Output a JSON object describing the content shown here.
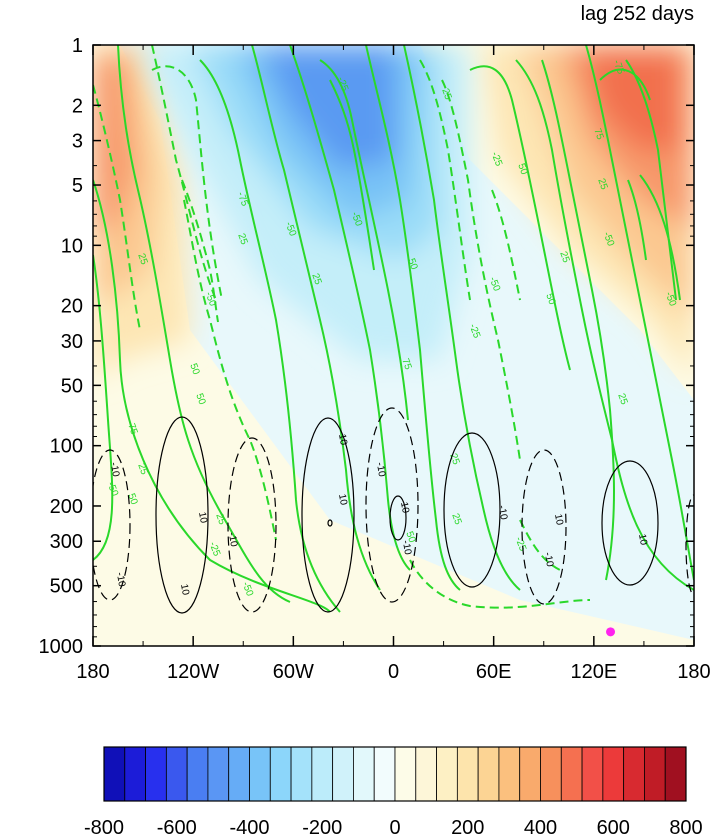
{
  "chart_data": {
    "type": "contour",
    "title": "lag 252 days",
    "xlabel": "",
    "ylabel": "",
    "x_ticks": [
      "180",
      "120W",
      "60W",
      "0",
      "60E",
      "120E",
      "180"
    ],
    "x_range": [
      -180,
      180
    ],
    "y_ticks": [
      "1",
      "2",
      "3",
      "5",
      "10",
      "20",
      "30",
      "50",
      "100",
      "200",
      "300",
      "500",
      "1000"
    ],
    "y_tick_values": [
      1,
      2,
      3,
      5,
      10,
      20,
      30,
      50,
      100,
      200,
      300,
      500,
      1000
    ],
    "y_range": [
      1,
      1000
    ],
    "y_scale": "log-reversed",
    "grid": false,
    "colorbar": {
      "orientation": "horizontal",
      "labels": [
        "-800",
        "-600",
        "-400",
        "-200",
        "0",
        "200",
        "400",
        "600",
        "800"
      ],
      "range": [
        -800,
        800
      ],
      "interval": 50,
      "colors": [
        "#1010b8",
        "#1c1cd8",
        "#2830ee",
        "#3a58ee",
        "#4a7ef2",
        "#5a96f4",
        "#66acf6",
        "#78c4f8",
        "#8cd6fa",
        "#a4e2fa",
        "#bcecfa",
        "#d0f2fa",
        "#e2f8fb",
        "#f2fcfd",
        "#fdfce8",
        "#fdf6d8",
        "#fdf0c4",
        "#fde4ac",
        "#fcd494",
        "#fbc07e",
        "#f9aa6c",
        "#f7905c",
        "#f57050",
        "#f25048",
        "#ec3a3a",
        "#d82a30",
        "#c01c26",
        "#a01020"
      ]
    },
    "shaded_field": {
      "label": "shading",
      "features": [
        {
          "kind": "high",
          "lon": -170,
          "lev": 6,
          "value": 300
        },
        {
          "kind": "low",
          "lon": -30,
          "lev": 2.5,
          "value": -300
        },
        {
          "kind": "high",
          "lon": 130,
          "lev": 2.5,
          "value": 350
        }
      ]
    },
    "green_contours": {
      "levels": [
        -75,
        -50,
        -25,
        25,
        50,
        75
      ],
      "labels": [
        "25",
        "50",
        "75",
        "-25",
        "-50",
        "-75",
        "25",
        "-50",
        "25",
        "-50",
        "25",
        "-25",
        "-50",
        "50",
        "75",
        "-50",
        "25",
        "50",
        "25",
        "-25",
        "50",
        "25",
        "-75",
        "-50",
        "25",
        "-50",
        "25",
        "-25",
        "50",
        "75",
        "-25",
        "50",
        "-50",
        "50",
        "25",
        "25"
      ]
    },
    "black_contours": {
      "levels": [
        -10,
        10
      ],
      "labels": [
        "-10",
        "10",
        "-10",
        "10",
        "10",
        "-10",
        "10",
        "-10",
        "-10",
        "10",
        "-10",
        "10",
        "-10",
        "10"
      ]
    },
    "marker": {
      "lon": 130,
      "lev": 850,
      "color": "#ff22ee"
    }
  }
}
